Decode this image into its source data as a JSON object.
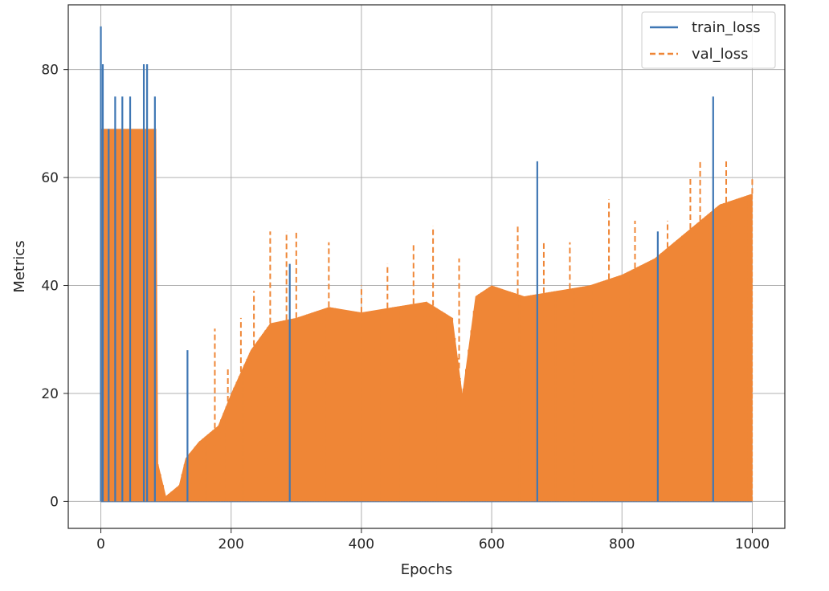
{
  "chart_data": {
    "type": "line",
    "title": "",
    "xlabel": "Epochs",
    "ylabel": "Metrics",
    "xlim": [
      -50,
      1050
    ],
    "ylim": [
      -5,
      92
    ],
    "xticks": [
      0,
      200,
      400,
      600,
      800,
      1000
    ],
    "yticks": [
      0,
      20,
      40,
      60,
      80
    ],
    "grid": true,
    "legend_position": "top-right",
    "series": [
      {
        "name": "train_loss",
        "color": "#3f77b4",
        "style": "solid",
        "spikes": [
          [
            0,
            88
          ],
          [
            3,
            81
          ],
          [
            12,
            69
          ],
          [
            22,
            75
          ],
          [
            33,
            75
          ],
          [
            45,
            75
          ],
          [
            66,
            81
          ],
          [
            71,
            81
          ],
          [
            83,
            75
          ],
          [
            133,
            28
          ],
          [
            290,
            44
          ],
          [
            670,
            63
          ],
          [
            855,
            50
          ],
          [
            940,
            75
          ]
        ]
      },
      {
        "name": "val_loss",
        "color": "#ef8636",
        "style": "dashed",
        "band_low": 0,
        "envelope": [
          [
            0,
            69
          ],
          [
            85,
            69
          ],
          [
            88,
            7
          ],
          [
            100,
            1
          ],
          [
            120,
            3
          ],
          [
            130,
            8
          ],
          [
            150,
            11
          ],
          [
            180,
            14
          ],
          [
            200,
            20
          ],
          [
            230,
            28
          ],
          [
            260,
            33
          ],
          [
            300,
            34
          ],
          [
            350,
            36
          ],
          [
            400,
            35
          ],
          [
            450,
            36
          ],
          [
            500,
            37
          ],
          [
            540,
            34
          ],
          [
            555,
            20
          ],
          [
            575,
            38
          ],
          [
            600,
            40
          ],
          [
            650,
            38
          ],
          [
            700,
            39
          ],
          [
            750,
            40
          ],
          [
            800,
            42
          ],
          [
            850,
            45
          ],
          [
            900,
            50
          ],
          [
            950,
            55
          ],
          [
            1000,
            57
          ]
        ],
        "spikes": [
          [
            175,
            32
          ],
          [
            195,
            25
          ],
          [
            215,
            34
          ],
          [
            235,
            39
          ],
          [
            260,
            50
          ],
          [
            285,
            50
          ],
          [
            300,
            50
          ],
          [
            350,
            48
          ],
          [
            400,
            40
          ],
          [
            440,
            44
          ],
          [
            480,
            48
          ],
          [
            510,
            51
          ],
          [
            550,
            45
          ],
          [
            640,
            51
          ],
          [
            680,
            48
          ],
          [
            720,
            48
          ],
          [
            780,
            56
          ],
          [
            820,
            52
          ],
          [
            870,
            52
          ],
          [
            905,
            60
          ],
          [
            920,
            63
          ],
          [
            960,
            63
          ],
          [
            1000,
            60
          ]
        ]
      }
    ]
  }
}
